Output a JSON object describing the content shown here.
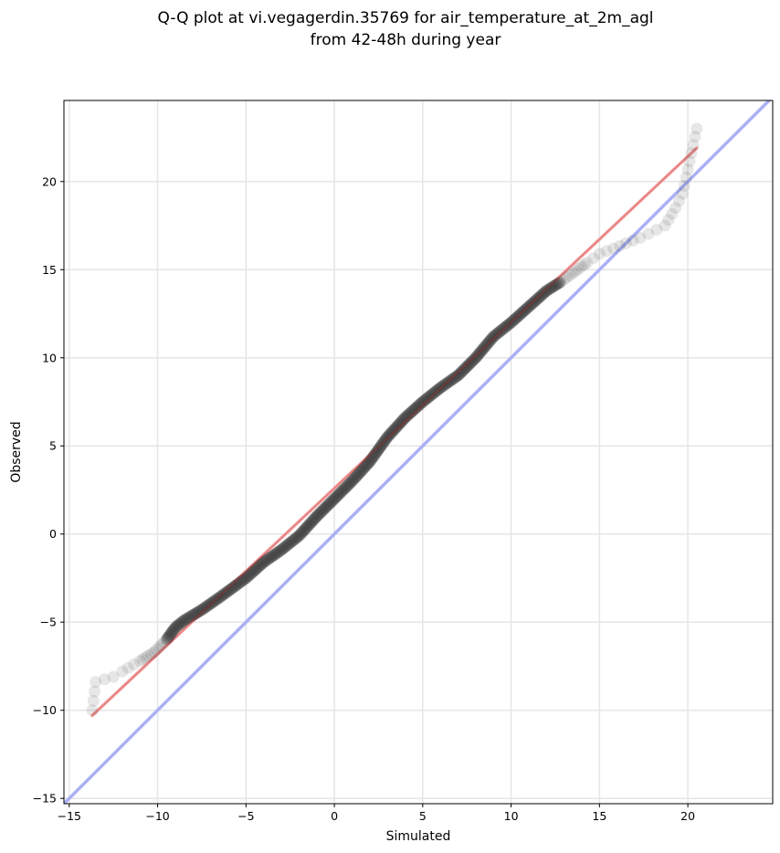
{
  "chart_data": {
    "type": "scatter",
    "title": "Q-Q plot at vi.vegagerdin.35769 for air_temperature_at_2m_agl",
    "subtitle": "from 42-48h during year",
    "xlabel": "Simulated",
    "ylabel": "Observed",
    "xlim": [
      -15.3,
      24.8
    ],
    "ylim": [
      -15.3,
      24.6
    ],
    "xticks": [
      -15,
      -10,
      -5,
      0,
      5,
      10,
      15,
      20
    ],
    "yticks": [
      -15,
      -10,
      -5,
      0,
      5,
      10,
      15,
      20
    ],
    "xtick_labels": [
      "−15",
      "−10",
      "−5",
      "0",
      "5",
      "10",
      "15",
      "20"
    ],
    "ytick_labels": [
      "−15",
      "−10",
      "−5",
      "0",
      "5",
      "10",
      "15",
      "20"
    ],
    "grid": true,
    "quantile_curve": [
      [
        -13.7,
        -10.0
      ],
      [
        -13.5,
        -8.4
      ],
      [
        -12.5,
        -8.1
      ],
      [
        -12.0,
        -7.8
      ],
      [
        -11.0,
        -7.2
      ],
      [
        -10.2,
        -6.7
      ],
      [
        -9.5,
        -6.0
      ],
      [
        -9.0,
        -5.3
      ],
      [
        -8.5,
        -4.9
      ],
      [
        -7.5,
        -4.3
      ],
      [
        -6.5,
        -3.6
      ],
      [
        -5.0,
        -2.5
      ],
      [
        -4.0,
        -1.6
      ],
      [
        -3.0,
        -0.9
      ],
      [
        -2.0,
        -0.1
      ],
      [
        -1.0,
        1.0
      ],
      [
        0.0,
        2.0
      ],
      [
        1.0,
        3.0
      ],
      [
        2.0,
        4.1
      ],
      [
        3.0,
        5.5
      ],
      [
        4.0,
        6.6
      ],
      [
        5.0,
        7.5
      ],
      [
        6.0,
        8.3
      ],
      [
        7.0,
        9.0
      ],
      [
        8.0,
        10.0
      ],
      [
        9.0,
        11.2
      ],
      [
        10.0,
        12.0
      ],
      [
        11.0,
        12.9
      ],
      [
        12.0,
        13.8
      ],
      [
        12.8,
        14.3
      ],
      [
        13.5,
        14.8
      ],
      [
        14.3,
        15.4
      ],
      [
        15.0,
        15.9
      ],
      [
        15.8,
        16.2
      ],
      [
        16.5,
        16.5
      ],
      [
        17.3,
        16.8
      ],
      [
        18.7,
        17.5
      ],
      [
        19.3,
        18.5
      ],
      [
        19.7,
        19.3
      ],
      [
        20.5,
        23.0
      ]
    ],
    "series": [
      {
        "name": "",
        "type": "scatter",
        "color": "#3a3a3a"
      },
      {
        "name": "",
        "type": "line",
        "role": "fit",
        "x": [
          -13.7,
          20.5
        ],
        "y": [
          -10.3,
          21.9
        ],
        "color": "#f4a6a6"
      },
      {
        "name": "",
        "type": "line",
        "role": "identity",
        "x": [
          -15.3,
          24.8
        ],
        "y": [
          -15.3,
          24.8
        ],
        "color": "#aab0f6"
      }
    ]
  }
}
